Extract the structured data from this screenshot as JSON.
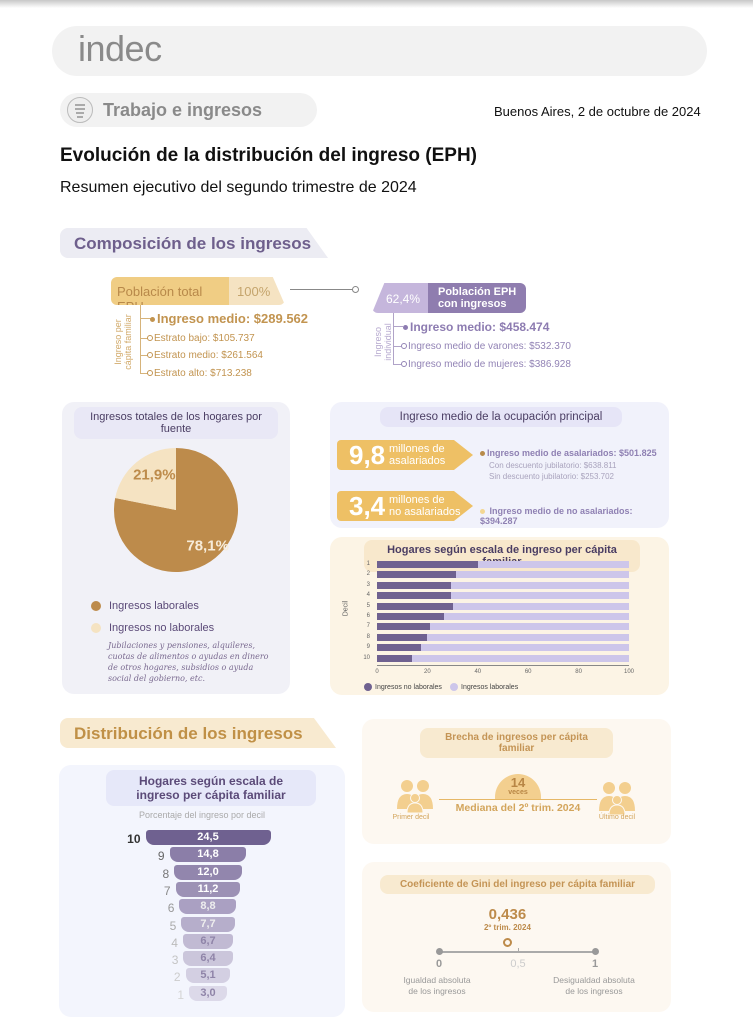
{
  "header": {
    "logo": "indec",
    "section": "Trabajo e ingresos",
    "section_icon": "statistics-icon",
    "dateline": "Buenos Aires, 2 de octubre de 2024",
    "title": "Evolución de la distribución del ingreso (EPH)",
    "subtitle": "Resumen ejecutivo del segundo trimestre de 2024"
  },
  "composition": {
    "heading": "Composición de los ingresos",
    "total_population": {
      "label": "Población total EPH",
      "percent": "100%",
      "axis_label_line1": "Ingreso per",
      "axis_label_line2": "cápita familiar",
      "mean": "Ingreso medio: $289.562",
      "strata": [
        "Estrato bajo: $105.737",
        "Estrato medio: $261.564",
        "Estrato alto: $713.238"
      ]
    },
    "income_population": {
      "percent": "62,4%",
      "label_line1": "Población EPH",
      "label_line2": "con ingresos",
      "axis_label_line1": "Ingreso",
      "axis_label_line2": "individual",
      "mean": "Ingreso medio: $458.474",
      "items": [
        "Ingreso medio de varones: $532.370",
        "Ingreso medio de mujeres: $386.928"
      ]
    }
  },
  "pie_card": {
    "title": "Ingresos totales de los hogares por fuente",
    "legend": [
      {
        "label": "Ingresos laborales",
        "color": "#bd8b4b"
      },
      {
        "label": "Ingresos no laborales",
        "color": "#f5e3c2"
      }
    ],
    "note": "Jubilaciones y pensiones, alquileres, cuotas de alimentos o ayudas en dinero de otros hogares, subsidios o ayuda social del gobierno, etc."
  },
  "occupation_card": {
    "title": "Ingreso medio de la ocupación principal",
    "salaried": {
      "number": "9,8",
      "label_line1": "millones de",
      "label_line2": "asalariados",
      "mean": "Ingreso medio de asalariados: $501.825",
      "with_pension": "Con descuento jubilatorio: $638.811",
      "without_pension": "Sin descuento jubilatorio: $253.702"
    },
    "non_salaried": {
      "number": "3,4",
      "label_line1": "millones de",
      "label_line2": "no asalariados",
      "mean": "Ingreso medio de no asalariados: $394.287"
    }
  },
  "distribution": {
    "heading": "Distribución de los ingresos",
    "funnel_title_line1": "Hogares según escala de",
    "funnel_title_line2": "ingreso per cápita familiar",
    "funnel_subtitle": "Porcentaje del ingreso por decil"
  },
  "gap_card": {
    "title": "Brecha de ingresos per cápita familiar",
    "times": "14",
    "times_label": "veces",
    "median_label": "Mediana del 2º trim. 2024",
    "left_label": "Primer decil",
    "right_label": "Último decil"
  },
  "gini_card": {
    "title": "Coeficiente de Gini del ingreso per cápita familiar",
    "value": 0.436,
    "value_label": "0,436",
    "period": "2º trim. 2024",
    "scale_min": "0",
    "scale_mid": "0,5",
    "scale_max": "1",
    "left_caption_line1": "Igualdad absoluta",
    "left_caption_line2": "de los ingresos",
    "right_caption_line1": "Desigualdad absoluta",
    "right_caption_line2": "de los ingresos"
  },
  "chart_data": [
    {
      "type": "pie",
      "title": "Ingresos totales de los hogares por fuente",
      "categories": [
        "Ingresos laborales",
        "Ingresos no laborales"
      ],
      "values": [
        78.1,
        21.9
      ],
      "labels": [
        "78,1%",
        "21,9%"
      ],
      "colors": [
        "#bd8b4b",
        "#f5e3c2"
      ],
      "legend": "bottom-left"
    },
    {
      "type": "bar",
      "stacked": true,
      "orientation": "horizontal",
      "title": "Hogares según escala de ingreso per cápita familiar",
      "ylabel": "Decil",
      "xlabel": "",
      "categories": [
        "1",
        "2",
        "3",
        "4",
        "5",
        "6",
        "7",
        "8",
        "9",
        "10"
      ],
      "xticks": [
        "0",
        "20",
        "40",
        "60",
        "80",
        "100"
      ],
      "xlim": [
        0,
        100
      ],
      "series": [
        {
          "name": "Ingresos no laborales",
          "color": "#6f6190",
          "values": [
            40.2,
            31.3,
            29.3,
            29.3,
            30.3,
            26.6,
            20.9,
            19.8,
            17.3,
            14.0
          ]
        },
        {
          "name": "Ingresos laborales",
          "color": "#cdc6ea",
          "values": [
            59.8,
            68.7,
            70.7,
            70.7,
            69.7,
            73.4,
            79.1,
            80.2,
            82.7,
            86.0
          ]
        }
      ],
      "legend": "bottom-left"
    },
    {
      "type": "bar",
      "orientation": "funnel",
      "title": "Hogares según escala de ingreso per cápita familiar",
      "subtitle": "Porcentaje del ingreso por decil",
      "categories": [
        "10",
        "9",
        "8",
        "7",
        "6",
        "5",
        "4",
        "3",
        "2",
        "1"
      ],
      "values": [
        24.5,
        14.8,
        12.0,
        11.2,
        8.8,
        7.7,
        6.7,
        6.4,
        5.1,
        3.0
      ],
      "labels": [
        "24,5",
        "14,8",
        "12,0",
        "11,2",
        "8,8",
        "7,7",
        "6,7",
        "6,4",
        "5,1",
        "3,0"
      ]
    }
  ]
}
